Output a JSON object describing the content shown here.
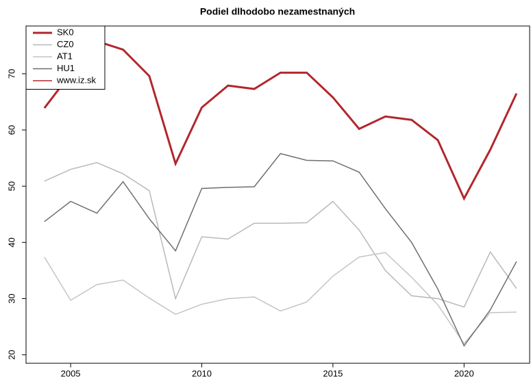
{
  "chart_data": {
    "type": "line",
    "title": "Podiel dlhodobo nezamestnaných",
    "x": [
      2004,
      2005,
      2006,
      2007,
      2008,
      2009,
      2010,
      2011,
      2012,
      2013,
      2014,
      2015,
      2016,
      2017,
      2018,
      2019,
      2020,
      2021,
      2022
    ],
    "series": [
      {
        "name": "SK0",
        "color": "#b2262c",
        "width": 3,
        "values": [
          63.9,
          70,
          75.8,
          74.3,
          69.6,
          54,
          64,
          67.9,
          67.3,
          70.2,
          70.2,
          65.8,
          60.2,
          62.4,
          61.8,
          58.2,
          47.8,
          56.5,
          66.5
        ]
      },
      {
        "name": "CZ0",
        "color": "#b8b8b8",
        "width": 1.5,
        "values": [
          50.9,
          53,
          54.2,
          52.2,
          49.2,
          30,
          41,
          40.6,
          43.4,
          43.4,
          43.5,
          47.3,
          42.2,
          35,
          30.5,
          30,
          28.5,
          38.3,
          31.8
        ]
      },
      {
        "name": "AT1",
        "color": "#c4c4c4",
        "width": 1.5,
        "values": [
          37.4,
          29.7,
          32.5,
          33.3,
          30.1,
          27.2,
          29,
          30,
          30.3,
          27.8,
          29.4,
          34,
          37.4,
          38.2,
          33.8,
          28.9,
          22,
          27.5,
          27.6
        ]
      },
      {
        "name": "HU1",
        "color": "#6e6e6e",
        "width": 1.5,
        "values": [
          43.7,
          47.3,
          45.2,
          50.8,
          44.2,
          38.5,
          49.6,
          49.8,
          49.9,
          55.8,
          54.6,
          54.5,
          52.5,
          46,
          40,
          31.7,
          21.6,
          28,
          36.6
        ]
      }
    ],
    "credit": "www.iz.sk",
    "credit_color": "#b2262c",
    "xlim": [
      2003.3,
      2022.5
    ],
    "xticks": [
      2005,
      2010,
      2015,
      2020
    ],
    "ylim": [
      18.5,
      78.5
    ],
    "yticks": [
      20,
      30,
      40,
      50,
      60,
      70
    ],
    "grid": false,
    "legend": "top-left"
  }
}
